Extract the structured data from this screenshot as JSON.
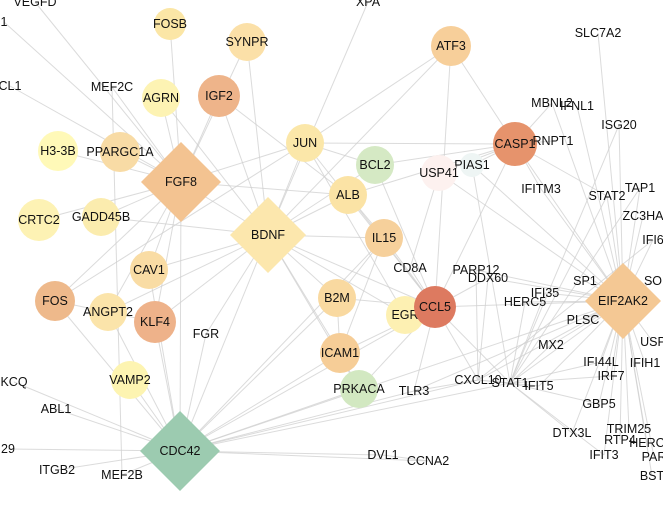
{
  "nodes": [
    {
      "id": "VEGFD",
      "label": "VEGFD",
      "shape": "circle",
      "color": "#ffffff",
      "text_only": true
    },
    {
      "id": "XPA",
      "label": "XPA",
      "shape": "circle",
      "color": "#ffffff",
      "text_only": true
    },
    {
      "id": "L1",
      "label": "1",
      "shape": "circle",
      "color": "#ffffff",
      "text_only": true
    },
    {
      "id": "FOSB",
      "label": "FOSB",
      "shape": "circle",
      "color": "#fbe6a6"
    },
    {
      "id": "SYNPR",
      "label": "SYNPR",
      "shape": "circle",
      "color": "#fbe0a8"
    },
    {
      "id": "ATF3",
      "label": "ATF3",
      "shape": "circle",
      "color": "#f7cf9a"
    },
    {
      "id": "SLC7A2",
      "label": "SLC7A2",
      "shape": "circle",
      "color": "#ffffff",
      "text_only": true
    },
    {
      "id": "CL1",
      "label": "CL1",
      "shape": "circle",
      "color": "#ffffff",
      "text_only": true
    },
    {
      "id": "MEF2C",
      "label": "MEF2C",
      "shape": "circle",
      "color": "#ffffff",
      "text_only": true
    },
    {
      "id": "AGRN",
      "label": "AGRN",
      "shape": "circle",
      "color": "#fdf3b3"
    },
    {
      "id": "IGF2",
      "label": "IGF2",
      "shape": "circle",
      "color": "#eeb48a"
    },
    {
      "id": "MBNL2",
      "label": "MBNL2",
      "shape": "circle",
      "color": "#ffffff",
      "text_only": true
    },
    {
      "id": "IFNL1",
      "label": "IFNL1",
      "shape": "circle",
      "color": "#ffffff",
      "text_only": true
    },
    {
      "id": "ISG20",
      "label": "ISG20",
      "shape": "circle",
      "color": "#ffffff",
      "text_only": true
    },
    {
      "id": "H3-3B",
      "label": "H3-3B",
      "shape": "circle",
      "color": "#fff9b8"
    },
    {
      "id": "PPARGC1A",
      "label": "PPARGC1A",
      "shape": "circle",
      "color": "#f8dba5"
    },
    {
      "id": "FGF8",
      "label": "FGF8",
      "shape": "diamond",
      "color": "#f3c391"
    },
    {
      "id": "JUN",
      "label": "JUN",
      "shape": "circle",
      "color": "#fbe7a9"
    },
    {
      "id": "BCL2",
      "label": "BCL2",
      "shape": "circle",
      "color": "#d5e9c4"
    },
    {
      "id": "CASP1",
      "label": "CASP1",
      "shape": "circle",
      "color": "#e6936c"
    },
    {
      "id": "RNPT1",
      "label": "RNPT1",
      "shape": "circle",
      "color": "#ffffff",
      "text_only": true
    },
    {
      "id": "PIAS1",
      "label": "PIAS1",
      "shape": "circle",
      "color": "#eef5f4"
    },
    {
      "id": "USP41",
      "label": "USP41",
      "shape": "circle",
      "color": "#fdf1ef"
    },
    {
      "id": "ALB",
      "label": "ALB",
      "shape": "circle",
      "color": "#fbe3a5"
    },
    {
      "id": "IFITM3",
      "label": "IFITM3",
      "shape": "circle",
      "color": "#ffffff",
      "text_only": true
    },
    {
      "id": "STAT2",
      "label": "STAT2",
      "shape": "circle",
      "color": "#ffffff",
      "text_only": true
    },
    {
      "id": "TAP1",
      "label": "TAP1",
      "shape": "circle",
      "color": "#ffffff",
      "text_only": true
    },
    {
      "id": "ZC3HA",
      "label": "ZC3HA",
      "shape": "circle",
      "color": "#ffffff",
      "text_only": true
    },
    {
      "id": "IFI6",
      "label": "IFI6",
      "shape": "circle",
      "color": "#fce4e4"
    },
    {
      "id": "CRTC2",
      "label": "CRTC2",
      "shape": "circle",
      "color": "#fdf2b4"
    },
    {
      "id": "GADD45B",
      "label": "GADD45B",
      "shape": "circle",
      "color": "#fbecae"
    },
    {
      "id": "BDNF",
      "label": "BDNF",
      "shape": "diamond",
      "color": "#fce7ad"
    },
    {
      "id": "IL15",
      "label": "IL15",
      "shape": "circle",
      "color": "#f6d09b"
    },
    {
      "id": "CD8A",
      "label": "CD8A",
      "shape": "circle",
      "color": "#ffffff",
      "text_only": true
    },
    {
      "id": "PARP12",
      "label": "PARP12",
      "shape": "circle",
      "color": "#fdf3f3"
    },
    {
      "id": "DDX60",
      "label": "DDX60",
      "shape": "circle",
      "color": "#fdf3f3"
    },
    {
      "id": "SP1",
      "label": "SP1",
      "shape": "circle",
      "color": "#ffffff",
      "text_only": true
    },
    {
      "id": "SO",
      "label": "SO",
      "shape": "circle",
      "color": "#ffffff",
      "text_only": true
    },
    {
      "id": "CAV1",
      "label": "CAV1",
      "shape": "circle",
      "color": "#f9dca4"
    },
    {
      "id": "FOS",
      "label": "FOS",
      "shape": "circle",
      "color": "#eeb98b"
    },
    {
      "id": "ANGPT2",
      "label": "ANGPT2",
      "shape": "circle",
      "color": "#fbe4aa"
    },
    {
      "id": "KLF4",
      "label": "KLF4",
      "shape": "circle",
      "color": "#eeb28a"
    },
    {
      "id": "FGR",
      "label": "FGR",
      "shape": "circle",
      "color": "#ffffff",
      "text_only": true
    },
    {
      "id": "B2M",
      "label": "B2M",
      "shape": "circle",
      "color": "#f9d9a0"
    },
    {
      "id": "EGR1",
      "label": "EGR",
      "shape": "circle",
      "color": "#fdf0b2"
    },
    {
      "id": "CCL5",
      "label": "CCL5",
      "shape": "circle",
      "color": "#dd7a60"
    },
    {
      "id": "IFI35",
      "label": "IFI35",
      "shape": "circle",
      "color": "#ffffff",
      "text_only": true
    },
    {
      "id": "HERC5",
      "label": "HERC5",
      "shape": "circle",
      "color": "#ffffff",
      "text_only": true
    },
    {
      "id": "PLSCR1",
      "label": "PLSC",
      "shape": "circle",
      "color": "#ffffff",
      "text_only": true
    },
    {
      "id": "EIF2AK2",
      "label": "EIF2AK2",
      "shape": "diamond",
      "color": "#f4c894"
    },
    {
      "id": "USP",
      "label": "USP",
      "shape": "circle",
      "color": "#ffffff",
      "text_only": true
    },
    {
      "id": "KCQ",
      "label": "KCQ",
      "shape": "circle",
      "color": "#ffffff",
      "text_only": true
    },
    {
      "id": "ICAM1",
      "label": "ICAM1",
      "shape": "circle",
      "color": "#f6cd97"
    },
    {
      "id": "MX2",
      "label": "MX2",
      "shape": "circle",
      "color": "#ffffff",
      "text_only": true
    },
    {
      "id": "IFI44L",
      "label": "IFI44L",
      "shape": "circle",
      "color": "#ffffff",
      "text_only": true
    },
    {
      "id": "IFIH1",
      "label": "IFIH1",
      "shape": "circle",
      "color": "#ffffff",
      "text_only": true
    },
    {
      "id": "VAMP2",
      "label": "VAMP2",
      "shape": "circle",
      "color": "#fdf4b1"
    },
    {
      "id": "PRKACA",
      "label": "PRKACA",
      "shape": "circle",
      "color": "#d2e8c1"
    },
    {
      "id": "TLR3",
      "label": "TLR3",
      "shape": "circle",
      "color": "#fcf3f1"
    },
    {
      "id": "CXCL10",
      "label": "CXCL10",
      "shape": "circle",
      "color": "#fce6e6"
    },
    {
      "id": "STAT1",
      "label": "STAT1",
      "shape": "circle",
      "color": "#fdf0ee"
    },
    {
      "id": "IFIT5",
      "label": "IFIT5",
      "shape": "circle",
      "color": "#ffffff",
      "text_only": true
    },
    {
      "id": "IRF7",
      "label": "IRF7",
      "shape": "circle",
      "color": "#ffffff",
      "text_only": true
    },
    {
      "id": "ABL1",
      "label": "ABL1",
      "shape": "circle",
      "color": "#ffffff",
      "text_only": true
    },
    {
      "id": "GBP5",
      "label": "GBP5",
      "shape": "circle",
      "color": "#ffffff",
      "text_only": true
    },
    {
      "id": "N29",
      "label": "29",
      "shape": "circle",
      "color": "#ffffff",
      "text_only": true
    },
    {
      "id": "CDC42",
      "label": "CDC42",
      "shape": "diamond",
      "color": "#9ccbb0"
    },
    {
      "id": "DVL1",
      "label": "DVL1",
      "shape": "circle",
      "color": "#ffffff",
      "text_only": true
    },
    {
      "id": "CCNA2",
      "label": "CCNA2",
      "shape": "circle",
      "color": "#ffffff",
      "text_only": true
    },
    {
      "id": "DTX3L",
      "label": "DTX3L",
      "shape": "circle",
      "color": "#ffffff",
      "text_only": true
    },
    {
      "id": "TRIM25",
      "label": "TRIM25",
      "shape": "circle",
      "color": "#ffffff",
      "text_only": true
    },
    {
      "id": "RTP4",
      "label": "RTP4",
      "shape": "circle",
      "color": "#ffffff",
      "text_only": true
    },
    {
      "id": "HERC6",
      "label": "HERC",
      "shape": "circle",
      "color": "#ffffff",
      "text_only": true
    },
    {
      "id": "IFIT3",
      "label": "IFIT3",
      "shape": "circle",
      "color": "#fce8e8"
    },
    {
      "id": "PAR",
      "label": "PAR",
      "shape": "circle",
      "color": "#fce8e8"
    },
    {
      "id": "ITGB2",
      "label": "ITGB2",
      "shape": "circle",
      "color": "#ffffff",
      "text_only": true
    },
    {
      "id": "MEF2B",
      "label": "MEF2B",
      "shape": "circle",
      "color": "#ffffff",
      "text_only": true
    },
    {
      "id": "BST",
      "label": "BST",
      "shape": "circle",
      "color": "#fce4e4"
    }
  ],
  "edges": [
    [
      "FGF8",
      "FOSB"
    ],
    [
      "FGF8",
      "SYNPR"
    ],
    [
      "FGF8",
      "AGRN"
    ],
    [
      "FGF8",
      "IGF2"
    ],
    [
      "FGF8",
      "MEF2C"
    ],
    [
      "FGF8",
      "H3-3B"
    ],
    [
      "FGF8",
      "PPARGC1A"
    ],
    [
      "FGF8",
      "CRTC2"
    ],
    [
      "FGF8",
      "GADD45B"
    ],
    [
      "FGF8",
      "CAV1"
    ],
    [
      "FGF8",
      "FOS"
    ],
    [
      "FGF8",
      "ANGPT2"
    ],
    [
      "FGF8",
      "KLF4"
    ],
    [
      "FGF8",
      "BDNF"
    ],
    [
      "FGF8",
      "CDC42"
    ],
    [
      "FGF8",
      "JUN"
    ],
    [
      "FGF8",
      "ALB"
    ],
    [
      "FGF8",
      "CL1"
    ],
    [
      "FGF8",
      "L1"
    ],
    [
      "FGF8",
      "VEGFD"
    ],
    [
      "BDNF",
      "SYNPR"
    ],
    [
      "BDNF",
      "IGF2"
    ],
    [
      "BDNF",
      "JUN"
    ],
    [
      "BDNF",
      "BCL2"
    ],
    [
      "BDNF",
      "ALB"
    ],
    [
      "BDNF",
      "IL15"
    ],
    [
      "BDNF",
      "B2M"
    ],
    [
      "BDNF",
      "ICAM1"
    ],
    [
      "BDNF",
      "CAV1"
    ],
    [
      "BDNF",
      "KLF4"
    ],
    [
      "BDNF",
      "FGR"
    ],
    [
      "BDNF",
      "CDC42"
    ],
    [
      "BDNF",
      "ATF3"
    ],
    [
      "BDNF",
      "AGRN"
    ],
    [
      "BDNF",
      "EGR1"
    ],
    [
      "BDNF",
      "PRKACA"
    ],
    [
      "BDNF",
      "CCL5"
    ],
    [
      "BDNF",
      "XPA"
    ],
    [
      "BDNF",
      "GADD45B"
    ],
    [
      "BDNF",
      "ANGPT2"
    ],
    [
      "CDC42",
      "KLF4"
    ],
    [
      "CDC42",
      "VAMP2"
    ],
    [
      "CDC42",
      "ICAM1"
    ],
    [
      "CDC42",
      "PRKACA"
    ],
    [
      "CDC42",
      "ABL1"
    ],
    [
      "CDC42",
      "ITGB2"
    ],
    [
      "CDC42",
      "MEF2B"
    ],
    [
      "CDC42",
      "DVL1"
    ],
    [
      "CDC42",
      "CCNA2"
    ],
    [
      "CDC42",
      "KCQ"
    ],
    [
      "CDC42",
      "N29"
    ],
    [
      "CDC42",
      "FGR"
    ],
    [
      "CDC42",
      "FOS"
    ],
    [
      "CDC42",
      "CAV1"
    ],
    [
      "CDC42",
      "B2M"
    ],
    [
      "CDC42",
      "CCL5"
    ],
    [
      "CDC42",
      "TLR3"
    ],
    [
      "CDC42",
      "STAT1"
    ],
    [
      "CDC42",
      "CXCL10"
    ],
    [
      "CDC42",
      "EIF2AK2"
    ],
    [
      "CDC42",
      "ANGPT2"
    ],
    [
      "CDC42",
      "IL15"
    ],
    [
      "CCL5",
      "CD8A"
    ],
    [
      "CCL5",
      "IL15"
    ],
    [
      "CCL5",
      "B2M"
    ],
    [
      "CCL5",
      "ICAM1"
    ],
    [
      "CCL5",
      "EGR1"
    ],
    [
      "CCL5",
      "CXCL10"
    ],
    [
      "CCL5",
      "STAT1"
    ],
    [
      "CCL5",
      "CASP1"
    ],
    [
      "CCL5",
      "BCL2"
    ],
    [
      "CCL5",
      "ALB"
    ],
    [
      "CCL5",
      "EIF2AK2"
    ],
    [
      "CCL5",
      "PRKACA"
    ],
    [
      "CCL5",
      "TLR3"
    ],
    [
      "CCL5",
      "DDX60"
    ],
    [
      "CCL5",
      "JUN"
    ],
    [
      "CCL5",
      "ATF3"
    ],
    [
      "CASP1",
      "BCL2"
    ],
    [
      "CASP1",
      "PIAS1"
    ],
    [
      "CASP1",
      "USP41"
    ],
    [
      "CASP1",
      "IFITM3"
    ],
    [
      "CASP1",
      "ATF3"
    ],
    [
      "CASP1",
      "MBNL2"
    ],
    [
      "CASP1",
      "RNPT1"
    ],
    [
      "CASP1",
      "EIF2AK2"
    ],
    [
      "CASP1",
      "ALB"
    ],
    [
      "CASP1",
      "JUN"
    ],
    [
      "CASP1",
      "STAT2"
    ],
    [
      "EIF2AK2",
      "IFNL1"
    ],
    [
      "EIF2AK2",
      "ISG20"
    ],
    [
      "EIF2AK2",
      "SLC7A2"
    ],
    [
      "EIF2AK2",
      "STAT2"
    ],
    [
      "EIF2AK2",
      "TAP1"
    ],
    [
      "EIF2AK2",
      "ZC3HA"
    ],
    [
      "EIF2AK2",
      "IFI6"
    ],
    [
      "EIF2AK2",
      "PARP12"
    ],
    [
      "EIF2AK2",
      "DDX60"
    ],
    [
      "EIF2AK2",
      "SP1"
    ],
    [
      "EIF2AK2",
      "SO"
    ],
    [
      "EIF2AK2",
      "IFI35"
    ],
    [
      "EIF2AK2",
      "HERC5"
    ],
    [
      "EIF2AK2",
      "PLSCR1"
    ],
    [
      "EIF2AK2",
      "USP"
    ],
    [
      "EIF2AK2",
      "MX2"
    ],
    [
      "EIF2AK2",
      "IFI44L"
    ],
    [
      "EIF2AK2",
      "IFIH1"
    ],
    [
      "EIF2AK2",
      "IRF7"
    ],
    [
      "EIF2AK2",
      "IFIT5"
    ],
    [
      "EIF2AK2",
      "GBP5"
    ],
    [
      "EIF2AK2",
      "DTX3L"
    ],
    [
      "EIF2AK2",
      "TRIM25"
    ],
    [
      "EIF2AK2",
      "RTP4"
    ],
    [
      "EIF2AK2",
      "HERC6"
    ],
    [
      "EIF2AK2",
      "IFIT3"
    ],
    [
      "EIF2AK2",
      "PAR"
    ],
    [
      "EIF2AK2",
      "BST"
    ],
    [
      "EIF2AK2",
      "CXCL10"
    ],
    [
      "EIF2AK2",
      "STAT1"
    ],
    [
      "EIF2AK2",
      "TLR3"
    ],
    [
      "EIF2AK2",
      "IFITM3"
    ],
    [
      "EIF2AK2",
      "MBNL2"
    ],
    [
      "EIF2AK2",
      "USP41"
    ],
    [
      "EIF2AK2",
      "PIAS1"
    ],
    [
      "STAT1",
      "IRF7"
    ],
    [
      "STAT1",
      "MX2"
    ],
    [
      "STAT1",
      "IFI35"
    ],
    [
      "STAT1",
      "HERC5"
    ],
    [
      "STAT1",
      "GBP5"
    ],
    [
      "STAT1",
      "IFIT3"
    ],
    [
      "STAT1",
      "ISG20"
    ],
    [
      "STAT1",
      "TAP1"
    ],
    [
      "STAT1",
      "STAT2"
    ],
    [
      "STAT1",
      "CXCL10"
    ],
    [
      "STAT1",
      "IFI44L"
    ],
    [
      "STAT1",
      "DTX3L"
    ],
    [
      "CXCL10",
      "DDX60"
    ],
    [
      "CXCL10",
      "PARP12"
    ],
    [
      "CXCL10",
      "IFI6"
    ],
    [
      "CXCL10",
      "IFIT5"
    ],
    [
      "CXCL10",
      "TLR3"
    ],
    [
      "IL15",
      "B2M"
    ],
    [
      "IL15",
      "ICAM1"
    ],
    [
      "ICAM1",
      "B2M"
    ],
    [
      "ICAM1",
      "PRKACA"
    ],
    [
      "BCL2",
      "JUN"
    ],
    [
      "ALB",
      "IL15"
    ],
    [
      "FOS",
      "JUN"
    ],
    [
      "FOS",
      "KLF4"
    ],
    [
      "JUN",
      "ATF3"
    ],
    [
      "IGF2",
      "ALB"
    ],
    [
      "EGR1",
      "JUN"
    ],
    [
      "PIAS1",
      "STAT1"
    ],
    [
      "USP41",
      "CD8A"
    ],
    [
      "DVL1",
      "CCNA2"
    ],
    [
      "MEF2C",
      "MEF2B"
    ]
  ]
}
